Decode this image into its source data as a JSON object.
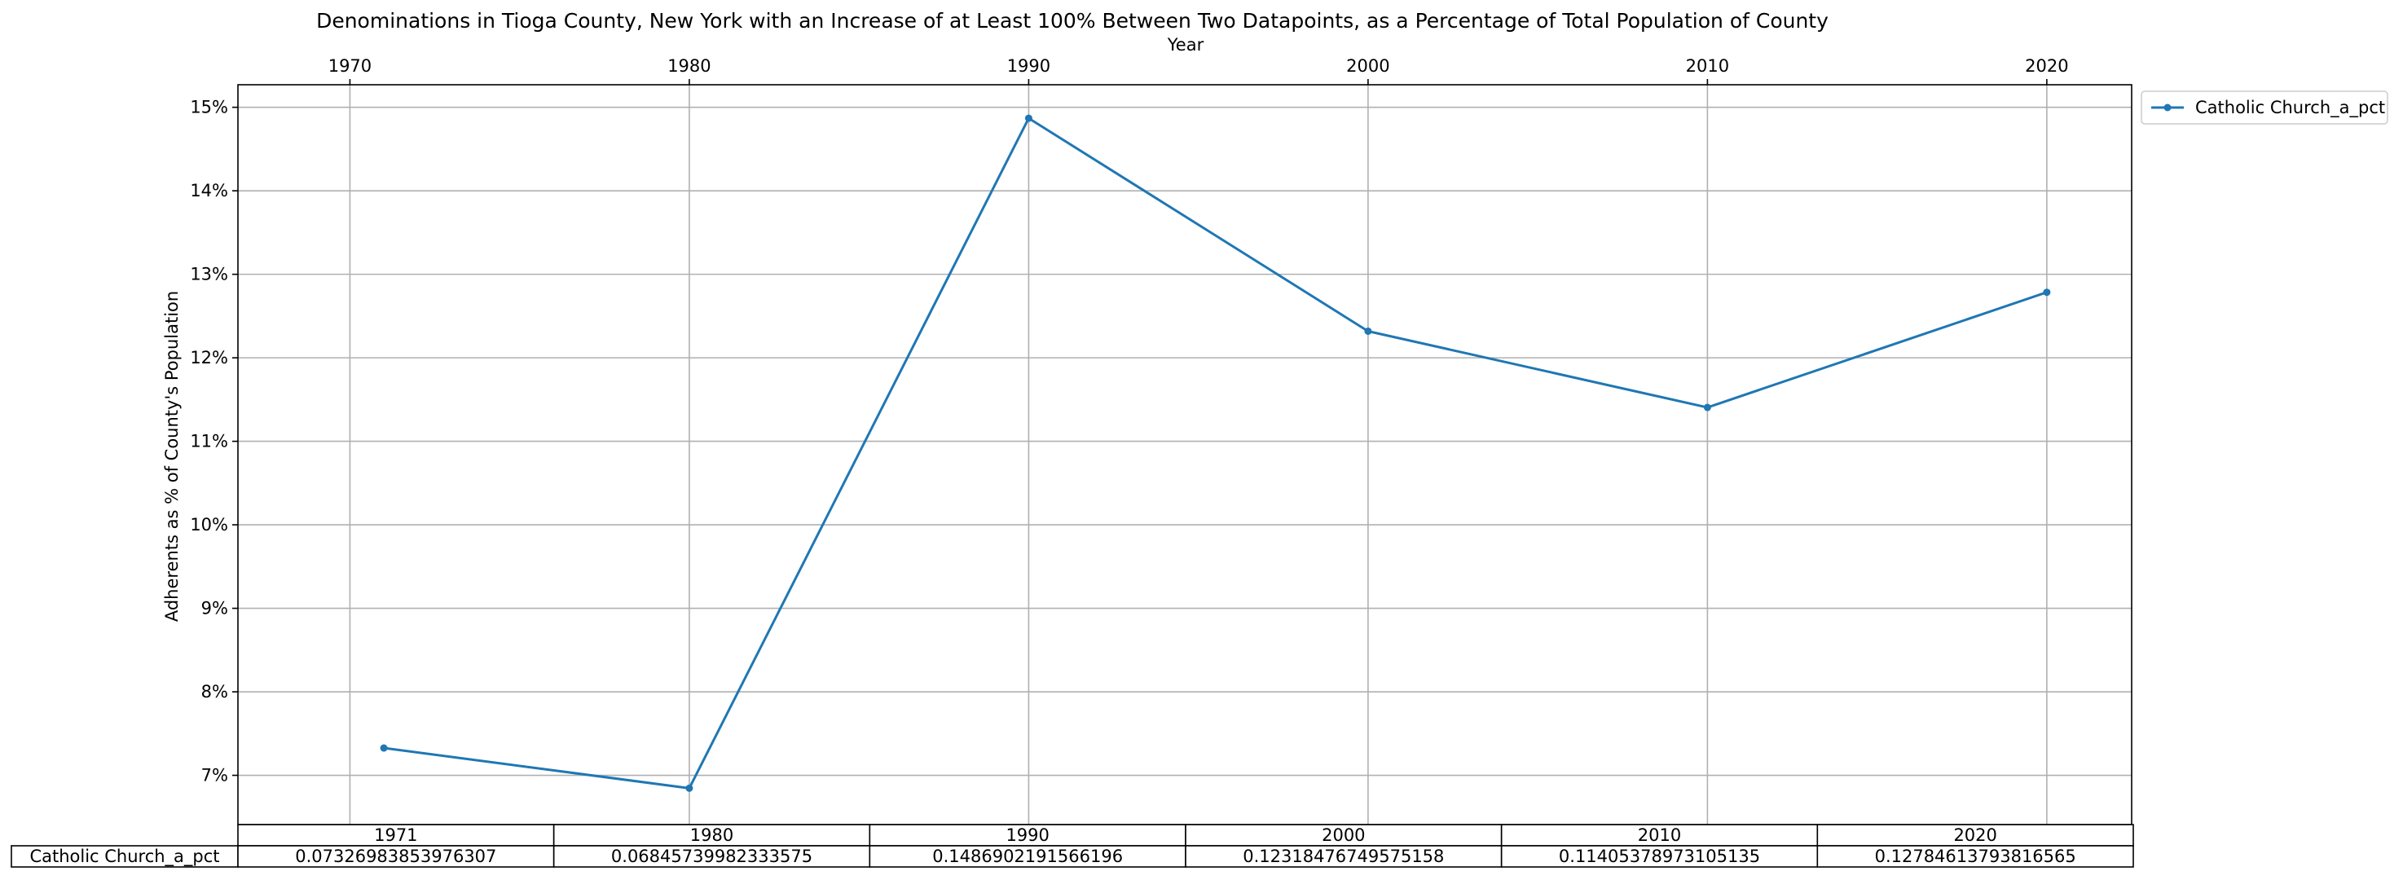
{
  "chart_data": {
    "type": "line",
    "title": "Denominations in Tioga County, New York with an Increase of at Least 100% Between Two Datapoints, as a Percentage of Total Population of County",
    "xlabel": "Year",
    "ylabel": "Adherents as % of County's Population",
    "x_ticks": [
      "1970",
      "1980",
      "1990",
      "2000",
      "2010",
      "2020"
    ],
    "y_ticks": [
      "7%",
      "8%",
      "9%",
      "10%",
      "11%",
      "12%",
      "13%",
      "14%",
      "15%"
    ],
    "x_axis_position": "top",
    "xlim": [
      1966.7,
      2022.5
    ],
    "ylim": [
      0.0641,
      0.1527
    ],
    "grid": true,
    "legend_position": "upper right, outside plot",
    "color": "#1f77b4",
    "series": [
      {
        "name": "Catholic Church_a_pct",
        "x": [
          1971,
          1980,
          1990,
          2000,
          2010,
          2020
        ],
        "values": [
          0.07326983853976307,
          0.06845739982333575,
          0.1486902191566196,
          0.12318476749575158,
          0.11405378973105135,
          0.12784613793816565
        ]
      }
    ],
    "table": {
      "columns": [
        "1971",
        "1980",
        "1990",
        "2000",
        "2010",
        "2020"
      ],
      "rows": [
        {
          "label": "Catholic Church_a_pct",
          "cells": [
            "0.07326983853976307",
            "0.06845739982333575",
            "0.1486902191566196",
            "0.12318476749575158",
            "0.11405378973105135",
            "0.12784613793816565"
          ]
        }
      ]
    }
  }
}
